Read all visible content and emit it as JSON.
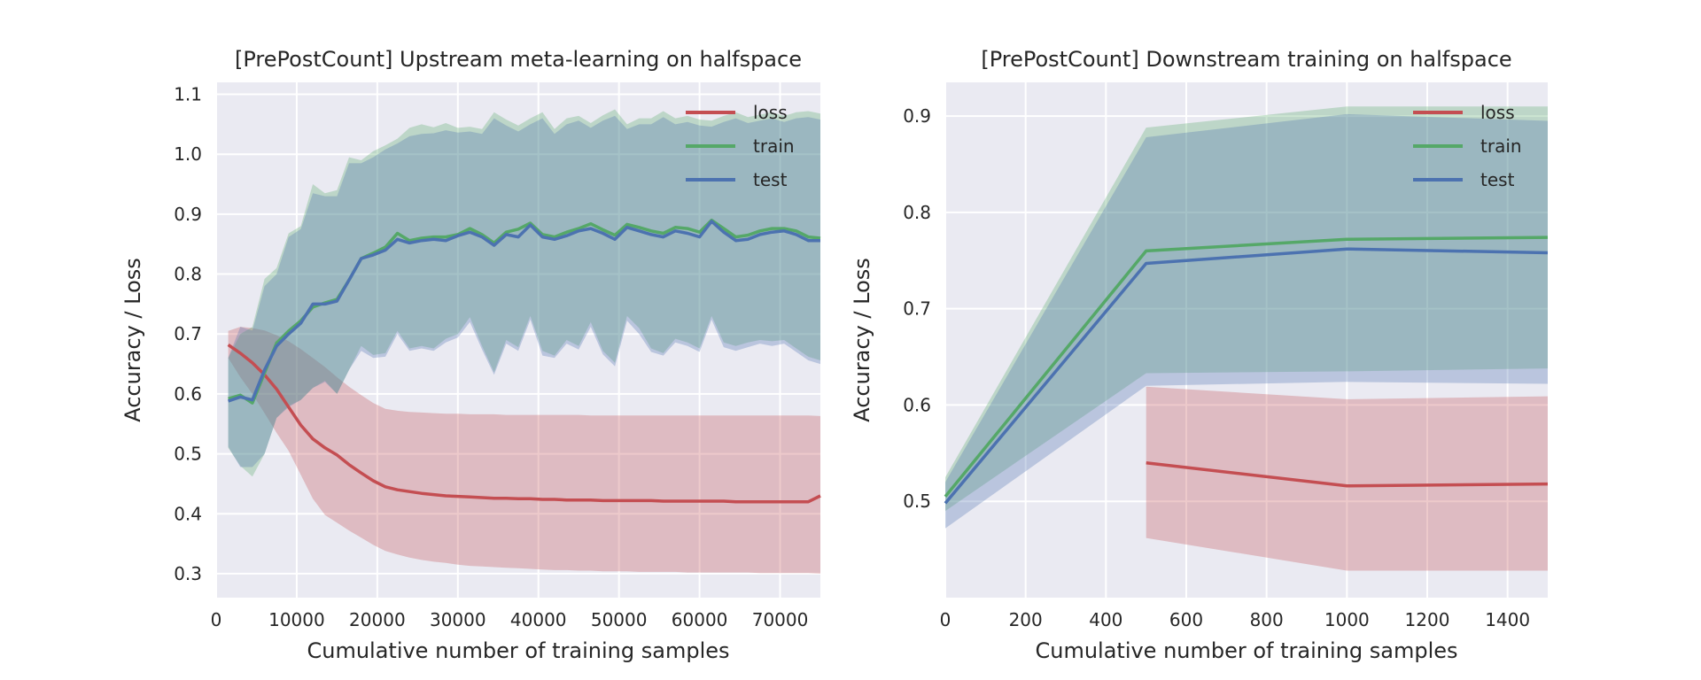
{
  "chart_data": [
    {
      "type": "line",
      "title": "[PrePostCount] Upstream meta-learning on halfspace",
      "xlabel": "Cumulative number of training samples",
      "ylabel": "Accuracy / Loss",
      "xlim": [
        0,
        75000
      ],
      "ylim": [
        0.26,
        1.12
      ],
      "xticks": [
        0,
        10000,
        20000,
        30000,
        40000,
        50000,
        60000,
        70000
      ],
      "yticks": [
        0.3,
        0.4,
        0.5,
        0.6,
        0.7,
        0.8,
        0.9,
        1.0,
        1.1
      ],
      "grid": true,
      "legend_position": "top-right",
      "x": [
        1500,
        3000,
        4500,
        6000,
        7500,
        9000,
        10500,
        12000,
        13500,
        15000,
        16500,
        18000,
        19500,
        21000,
        22500,
        24000,
        25500,
        27000,
        28500,
        30000,
        31500,
        33000,
        34500,
        36000,
        37500,
        39000,
        40500,
        42000,
        43500,
        45000,
        46500,
        48000,
        49500,
        51000,
        52500,
        54000,
        55500,
        57000,
        58500,
        60000,
        61500,
        63000,
        64500,
        66000,
        67500,
        69000,
        70500,
        72000,
        73500,
        75000
      ],
      "series": [
        {
          "name": "loss",
          "color": "#c44e52",
          "values": [
            0.682,
            0.668,
            0.652,
            0.632,
            0.608,
            0.578,
            0.548,
            0.525,
            0.51,
            0.498,
            0.482,
            0.468,
            0.455,
            0.445,
            0.44,
            0.437,
            0.434,
            0.432,
            0.43,
            0.429,
            0.428,
            0.427,
            0.426,
            0.426,
            0.425,
            0.425,
            0.424,
            0.424,
            0.423,
            0.423,
            0.423,
            0.422,
            0.422,
            0.422,
            0.422,
            0.422,
            0.421,
            0.421,
            0.421,
            0.421,
            0.421,
            0.421,
            0.42,
            0.42,
            0.42,
            0.42,
            0.42,
            0.42,
            0.42,
            0.43
          ],
          "lower": [
            0.66,
            0.628,
            0.6,
            0.568,
            0.535,
            0.505,
            0.465,
            0.425,
            0.398,
            0.385,
            0.372,
            0.36,
            0.348,
            0.338,
            0.332,
            0.327,
            0.323,
            0.32,
            0.318,
            0.315,
            0.313,
            0.312,
            0.311,
            0.31,
            0.309,
            0.308,
            0.307,
            0.306,
            0.306,
            0.305,
            0.305,
            0.304,
            0.304,
            0.304,
            0.303,
            0.303,
            0.303,
            0.303,
            0.302,
            0.302,
            0.302,
            0.302,
            0.302,
            0.302,
            0.301,
            0.301,
            0.301,
            0.301,
            0.301,
            0.3
          ],
          "upper": [
            0.705,
            0.712,
            0.71,
            0.706,
            0.698,
            0.688,
            0.675,
            0.66,
            0.645,
            0.628,
            0.612,
            0.598,
            0.585,
            0.575,
            0.572,
            0.57,
            0.569,
            0.568,
            0.567,
            0.567,
            0.566,
            0.566,
            0.566,
            0.565,
            0.565,
            0.565,
            0.565,
            0.565,
            0.565,
            0.565,
            0.564,
            0.564,
            0.564,
            0.564,
            0.564,
            0.564,
            0.564,
            0.564,
            0.564,
            0.564,
            0.564,
            0.564,
            0.564,
            0.564,
            0.564,
            0.564,
            0.564,
            0.564,
            0.564,
            0.563
          ]
        },
        {
          "name": "train",
          "color": "#55a868",
          "values": [
            0.592,
            0.598,
            0.585,
            0.635,
            0.685,
            0.705,
            0.722,
            0.745,
            0.752,
            0.758,
            0.79,
            0.826,
            0.835,
            0.845,
            0.868,
            0.856,
            0.86,
            0.862,
            0.862,
            0.866,
            0.876,
            0.866,
            0.852,
            0.87,
            0.875,
            0.885,
            0.866,
            0.862,
            0.87,
            0.876,
            0.884,
            0.874,
            0.865,
            0.883,
            0.878,
            0.872,
            0.868,
            0.878,
            0.876,
            0.87,
            0.89,
            0.876,
            0.862,
            0.865,
            0.872,
            0.876,
            0.876,
            0.872,
            0.862,
            0.86
          ],
          "lower": [
            0.51,
            0.48,
            0.462,
            0.5,
            0.56,
            0.58,
            0.59,
            0.61,
            0.622,
            0.6,
            0.64,
            0.68,
            0.665,
            0.668,
            0.705,
            0.676,
            0.68,
            0.676,
            0.692,
            0.7,
            0.728,
            0.68,
            0.636,
            0.69,
            0.678,
            0.73,
            0.672,
            0.664,
            0.69,
            0.68,
            0.72,
            0.672,
            0.652,
            0.73,
            0.71,
            0.676,
            0.668,
            0.692,
            0.686,
            0.676,
            0.73,
            0.686,
            0.68,
            0.686,
            0.69,
            0.688,
            0.69,
            0.676,
            0.662,
            0.656
          ],
          "upper": [
            0.66,
            0.7,
            0.712,
            0.792,
            0.81,
            0.868,
            0.88,
            0.95,
            0.935,
            0.94,
            0.995,
            0.99,
            1.005,
            1.015,
            1.026,
            1.044,
            1.05,
            1.045,
            1.052,
            1.044,
            1.046,
            1.042,
            1.07,
            1.058,
            1.048,
            1.06,
            1.07,
            1.042,
            1.06,
            1.064,
            1.052,
            1.065,
            1.075,
            1.05,
            1.06,
            1.06,
            1.072,
            1.06,
            1.064,
            1.058,
            1.056,
            1.064,
            1.07,
            1.062,
            1.066,
            1.07,
            1.064,
            1.07,
            1.072,
            1.068
          ]
        },
        {
          "name": "test",
          "color": "#4c72b0",
          "values": [
            0.588,
            0.595,
            0.59,
            0.64,
            0.68,
            0.7,
            0.718,
            0.75,
            0.75,
            0.755,
            0.79,
            0.826,
            0.832,
            0.84,
            0.858,
            0.852,
            0.856,
            0.858,
            0.856,
            0.864,
            0.87,
            0.862,
            0.848,
            0.866,
            0.862,
            0.882,
            0.862,
            0.858,
            0.864,
            0.872,
            0.876,
            0.868,
            0.858,
            0.878,
            0.872,
            0.866,
            0.862,
            0.872,
            0.868,
            0.862,
            0.888,
            0.87,
            0.856,
            0.858,
            0.866,
            0.87,
            0.872,
            0.866,
            0.856,
            0.856
          ],
          "lower": [
            0.512,
            0.478,
            0.478,
            0.5,
            0.56,
            0.578,
            0.59,
            0.61,
            0.62,
            0.6,
            0.64,
            0.672,
            0.66,
            0.662,
            0.7,
            0.672,
            0.676,
            0.672,
            0.686,
            0.694,
            0.72,
            0.674,
            0.632,
            0.684,
            0.672,
            0.724,
            0.664,
            0.66,
            0.684,
            0.674,
            0.712,
            0.666,
            0.646,
            0.722,
            0.7,
            0.67,
            0.664,
            0.686,
            0.68,
            0.67,
            0.724,
            0.678,
            0.672,
            0.678,
            0.684,
            0.68,
            0.684,
            0.67,
            0.656,
            0.65
          ],
          "upper": [
            0.66,
            0.712,
            0.706,
            0.78,
            0.8,
            0.862,
            0.875,
            0.935,
            0.93,
            0.93,
            0.985,
            0.985,
            0.995,
            1.008,
            1.018,
            1.03,
            1.034,
            1.035,
            1.04,
            1.036,
            1.038,
            1.034,
            1.06,
            1.048,
            1.038,
            1.05,
            1.06,
            1.034,
            1.05,
            1.056,
            1.044,
            1.056,
            1.064,
            1.042,
            1.05,
            1.05,
            1.062,
            1.05,
            1.054,
            1.048,
            1.046,
            1.054,
            1.06,
            1.052,
            1.056,
            1.06,
            1.054,
            1.06,
            1.062,
            1.058
          ]
        }
      ]
    },
    {
      "type": "line",
      "title": "[PrePostCount] Downstream training on halfspace",
      "xlabel": "Cumulative number of training samples",
      "ylabel": "Accuracy / Loss",
      "xlim": [
        0,
        1500
      ],
      "ylim": [
        0.4,
        0.935
      ],
      "xticks": [
        0,
        200,
        400,
        600,
        800,
        1000,
        1200,
        1400
      ],
      "yticks": [
        0.5,
        0.6,
        0.7,
        0.8,
        0.9
      ],
      "grid": true,
      "legend_position": "top-right",
      "series": [
        {
          "name": "loss",
          "color": "#c44e52",
          "x": [
            500,
            1000,
            1500
          ],
          "values": [
            0.54,
            0.516,
            0.518
          ],
          "lower": [
            0.462,
            0.428,
            0.428
          ],
          "upper": [
            0.619,
            0.606,
            0.609
          ]
        },
        {
          "name": "train",
          "color": "#55a868",
          "x": [
            0,
            500,
            1000,
            1500
          ],
          "values": [
            0.505,
            0.76,
            0.772,
            0.774
          ],
          "lower": [
            0.49,
            0.633,
            0.635,
            0.638
          ],
          "upper": [
            0.525,
            0.888,
            0.91,
            0.91
          ]
        },
        {
          "name": "test",
          "color": "#4c72b0",
          "x": [
            0,
            500,
            1000,
            1500
          ],
          "values": [
            0.498,
            0.747,
            0.762,
            0.758
          ],
          "lower": [
            0.472,
            0.62,
            0.624,
            0.622
          ],
          "upper": [
            0.52,
            0.878,
            0.902,
            0.895
          ]
        }
      ]
    }
  ]
}
